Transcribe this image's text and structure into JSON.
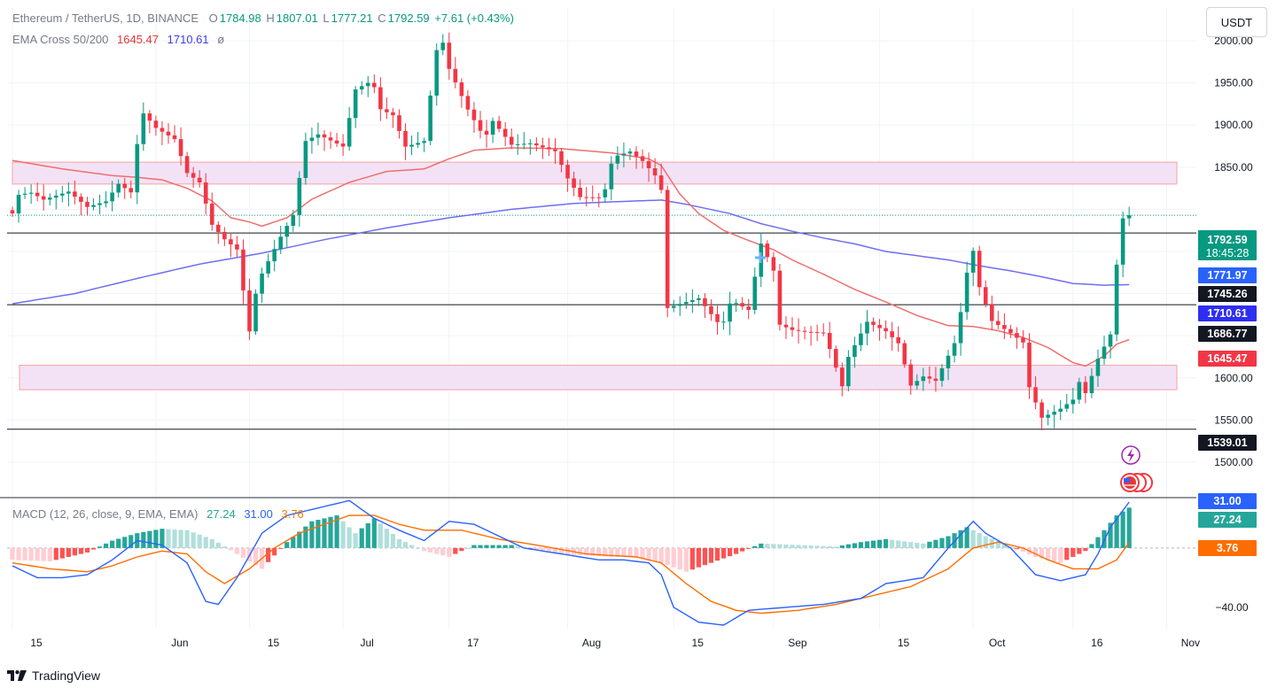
{
  "header": {
    "symbol": "Ethereum / TetherUS, 1D, BINANCE",
    "o_label": "O",
    "o_value": "1784.98",
    "h_label": "H",
    "h_value": "1807.01",
    "l_label": "L",
    "l_value": "1777.21",
    "c_label": "C",
    "c_value": "1792.59",
    "change": "+7.61 (+0.43%)",
    "ema_label": "EMA Cross 50/200",
    "ema50_value": "1645.47",
    "ema200_value": "1710.61",
    "ema_extra": "ø",
    "macd_label": "MACD (12, 26, close, 9, EMA, EMA)",
    "macd_hist_value": "27.24",
    "macd_line_value": "31.00",
    "macd_signal_value": "3.76"
  },
  "currency_button": "USDT",
  "footer_brand": "TradingView",
  "colors": {
    "up": "#089981",
    "down": "#f23645",
    "ema50": "#f06e6e",
    "ema200": "#6e6ef0",
    "zone_fill": "#f3e2f5",
    "zone_stroke": "#f4a3a3",
    "macd": "#2962ff",
    "signal": "#ff6d00",
    "hist_pos_strong": "#26a69a",
    "hist_pos_weak": "#b2dfdb",
    "hist_neg_strong": "#ff5252",
    "hist_neg_weak": "#ffcdd2"
  },
  "chart_data": {
    "type": "candlestick",
    "price_axis": {
      "ticks": [
        1500,
        1550,
        1600,
        1650,
        1700,
        1750,
        1800,
        1850,
        1900,
        1950,
        2000
      ],
      "tick_labels": [
        "1500.00",
        "1550.00",
        "1600.00",
        "1650.00",
        "1700.00",
        "1750.00",
        "1800.00",
        "1850.00",
        "1900.00",
        "1950.00",
        "2000.00"
      ],
      "range": [
        1460,
        2040
      ]
    },
    "macd_axis": {
      "ticks": [
        -40
      ],
      "tick_labels": [
        "−40.00"
      ],
      "range": [
        -52,
        31
      ]
    },
    "time_axis": {
      "labels": [
        "15",
        "Jun",
        "15",
        "Jul",
        "17",
        "Aug",
        "15",
        "Sep",
        "15",
        "Oct",
        "16",
        "Nov"
      ],
      "label_bar_index": [
        0,
        23,
        38,
        53,
        70,
        89,
        106,
        122,
        139,
        154,
        170,
        185
      ]
    },
    "horizontal_levels": [
      {
        "value": 1771.97,
        "label": "1771.97"
      },
      {
        "value": 1686.77,
        "label": "1686.77"
      },
      {
        "value": 1539.01,
        "label": "1539.01"
      }
    ],
    "zones": [
      {
        "from": 1830,
        "to": 1856
      },
      {
        "from": 1586,
        "to": 1615
      }
    ],
    "price_labels": [
      {
        "value": 1792.59,
        "label": "1792.59",
        "sub": "18:45:28",
        "color": "#089981"
      },
      {
        "value": 1771.97,
        "label": "1771.97",
        "color": "#2962ff"
      },
      {
        "value": 1745.26,
        "label": "1745.26",
        "color": "#131722"
      },
      {
        "value": 1710.61,
        "label": "1710.61",
        "color": "#2e2ef2"
      },
      {
        "value": 1686.77,
        "label": "1686.77",
        "color": "#131722"
      },
      {
        "value": 1645.47,
        "label": "1645.47",
        "color": "#f23645"
      },
      {
        "value": 1539.01,
        "label": "1539.01",
        "color": "#131722"
      }
    ],
    "macd_labels": [
      {
        "value": 31.0,
        "label": "31.00",
        "color": "#2962ff"
      },
      {
        "value": 27.24,
        "label": "27.24",
        "color": "#26a69a"
      },
      {
        "value": 3.76,
        "label": "3.76",
        "color": "#ff6d00"
      }
    ],
    "close_path": [
      [
        0,
        1805
      ],
      [
        3,
        1812
      ],
      [
        5,
        1806
      ],
      [
        9,
        1820
      ],
      [
        12,
        1805
      ],
      [
        15,
        1815
      ],
      [
        17,
        1838
      ],
      [
        19,
        1830
      ],
      [
        21,
        1905
      ],
      [
        23,
        1890
      ],
      [
        26,
        1880
      ],
      [
        28,
        1842
      ],
      [
        30,
        1833
      ],
      [
        32,
        1785
      ],
      [
        34,
        1770
      ],
      [
        36,
        1760
      ],
      [
        38,
        1665
      ],
      [
        40,
        1715
      ],
      [
        43,
        1762
      ],
      [
        45,
        1790
      ],
      [
        47,
        1880
      ],
      [
        49,
        1890
      ],
      [
        53,
        1880
      ],
      [
        55,
        1950
      ],
      [
        57,
        1960
      ],
      [
        59,
        1910
      ],
      [
        61,
        1905
      ],
      [
        63,
        1870
      ],
      [
        66,
        1880
      ],
      [
        68,
        1990
      ],
      [
        69,
        2000
      ],
      [
        70,
        1970
      ],
      [
        73,
        1925
      ],
      [
        75,
        1902
      ],
      [
        77,
        1895
      ],
      [
        80,
        1870
      ],
      [
        83,
        1875
      ],
      [
        87,
        1870
      ],
      [
        89,
        1840
      ],
      [
        91,
        1820
      ],
      [
        94,
        1823
      ],
      [
        97,
        1855
      ],
      [
        99,
        1862
      ],
      [
        101,
        1853
      ],
      [
        103,
        1838
      ],
      [
        104,
        1822
      ],
      [
        105,
        1683
      ],
      [
        107,
        1690
      ],
      [
        110,
        1700
      ],
      [
        113,
        1675
      ],
      [
        116,
        1680
      ],
      [
        118,
        1674
      ],
      [
        120,
        1755
      ],
      [
        122,
        1725
      ],
      [
        123,
        1662
      ],
      [
        125,
        1658
      ],
      [
        127,
        1658
      ],
      [
        130,
        1660
      ],
      [
        131,
        1642
      ],
      [
        133,
        1600
      ],
      [
        135,
        1630
      ],
      [
        137,
        1660
      ],
      [
        140,
        1652
      ],
      [
        142,
        1640
      ],
      [
        144,
        1592
      ],
      [
        146,
        1605
      ],
      [
        148,
        1602
      ],
      [
        151,
        1650
      ],
      [
        152,
        1688
      ],
      [
        154,
        1742
      ],
      [
        155,
        1700
      ],
      [
        157,
        1662
      ],
      [
        160,
        1651
      ],
      [
        162,
        1642
      ],
      [
        163,
        1590
      ],
      [
        165,
        1556
      ],
      [
        168,
        1570
      ],
      [
        170,
        1583
      ],
      [
        171,
        1605
      ],
      [
        172,
        1572
      ],
      [
        174,
        1615
      ],
      [
        176,
        1646
      ],
      [
        177,
        1730
      ],
      [
        178,
        1786
      ],
      [
        179,
        1793
      ]
    ],
    "ema50": [
      [
        0,
        1858
      ],
      [
        8,
        1848
      ],
      [
        16,
        1840
      ],
      [
        20,
        1838
      ],
      [
        24,
        1835
      ],
      [
        28,
        1825
      ],
      [
        32,
        1810
      ],
      [
        35,
        1790
      ],
      [
        38,
        1785
      ],
      [
        40,
        1780
      ],
      [
        44,
        1790
      ],
      [
        48,
        1812
      ],
      [
        54,
        1832
      ],
      [
        60,
        1845
      ],
      [
        66,
        1848
      ],
      [
        70,
        1860
      ],
      [
        74,
        1870
      ],
      [
        80,
        1873
      ],
      [
        88,
        1872
      ],
      [
        96,
        1867
      ],
      [
        102,
        1860
      ],
      [
        104,
        1852
      ],
      [
        107,
        1818
      ],
      [
        110,
        1795
      ],
      [
        114,
        1775
      ],
      [
        118,
        1763
      ],
      [
        122,
        1752
      ],
      [
        125,
        1740
      ],
      [
        130,
        1723
      ],
      [
        135,
        1705
      ],
      [
        140,
        1690
      ],
      [
        145,
        1674
      ],
      [
        150,
        1662
      ],
      [
        154,
        1661
      ],
      [
        158,
        1656
      ],
      [
        162,
        1648
      ],
      [
        166,
        1636
      ],
      [
        170,
        1618
      ],
      [
        172,
        1614
      ],
      [
        175,
        1626
      ],
      [
        177,
        1640
      ],
      [
        179,
        1645.47
      ]
    ],
    "ema200": [
      [
        0,
        1688
      ],
      [
        10,
        1700
      ],
      [
        20,
        1718
      ],
      [
        30,
        1735
      ],
      [
        40,
        1748
      ],
      [
        50,
        1764
      ],
      [
        60,
        1778
      ],
      [
        70,
        1790
      ],
      [
        80,
        1800
      ],
      [
        90,
        1807
      ],
      [
        100,
        1810
      ],
      [
        104,
        1811
      ],
      [
        108,
        1806
      ],
      [
        115,
        1795
      ],
      [
        120,
        1783
      ],
      [
        125,
        1774
      ],
      [
        130,
        1766
      ],
      [
        135,
        1759
      ],
      [
        140,
        1750
      ],
      [
        145,
        1745
      ],
      [
        150,
        1740
      ],
      [
        155,
        1733
      ],
      [
        160,
        1727
      ],
      [
        165,
        1720
      ],
      [
        170,
        1712
      ],
      [
        175,
        1710
      ],
      [
        179,
        1710.61
      ]
    ],
    "macd_hist_anchors": [
      [
        0,
        -8
      ],
      [
        6,
        -9
      ],
      [
        12,
        -3
      ],
      [
        16,
        5
      ],
      [
        20,
        10
      ],
      [
        24,
        13
      ],
      [
        28,
        12
      ],
      [
        32,
        6
      ],
      [
        36,
        -4
      ],
      [
        40,
        -14
      ],
      [
        44,
        4
      ],
      [
        48,
        18
      ],
      [
        52,
        22
      ],
      [
        55,
        10
      ],
      [
        58,
        20
      ],
      [
        62,
        6
      ],
      [
        66,
        -2
      ],
      [
        70,
        -6
      ],
      [
        74,
        2
      ],
      [
        80,
        2
      ],
      [
        88,
        -4
      ],
      [
        96,
        -6
      ],
      [
        100,
        -6
      ],
      [
        104,
        -10
      ],
      [
        108,
        -16
      ],
      [
        112,
        -10
      ],
      [
        116,
        -4
      ],
      [
        120,
        3
      ],
      [
        126,
        2
      ],
      [
        132,
        1
      ],
      [
        136,
        4
      ],
      [
        140,
        6
      ],
      [
        146,
        3
      ],
      [
        150,
        8
      ],
      [
        153,
        14
      ],
      [
        156,
        8
      ],
      [
        160,
        1
      ],
      [
        164,
        -6
      ],
      [
        168,
        -10
      ],
      [
        172,
        -2
      ],
      [
        175,
        12
      ],
      [
        177,
        22
      ],
      [
        179,
        27.24
      ]
    ],
    "macd_line": [
      [
        0,
        -12
      ],
      [
        4,
        -20
      ],
      [
        8,
        -20
      ],
      [
        12,
        -18
      ],
      [
        16,
        -8
      ],
      [
        20,
        5
      ],
      [
        24,
        2
      ],
      [
        28,
        -10
      ],
      [
        31,
        -36
      ],
      [
        33,
        -38
      ],
      [
        36,
        -20
      ],
      [
        40,
        10
      ],
      [
        44,
        22
      ],
      [
        50,
        28
      ],
      [
        54,
        32
      ],
      [
        58,
        20
      ],
      [
        62,
        12
      ],
      [
        66,
        5
      ],
      [
        70,
        18
      ],
      [
        74,
        16
      ],
      [
        78,
        8
      ],
      [
        82,
        0
      ],
      [
        88,
        -4
      ],
      [
        94,
        -8
      ],
      [
        98,
        -8
      ],
      [
        102,
        -10
      ],
      [
        104,
        -18
      ],
      [
        106,
        -40
      ],
      [
        110,
        -50
      ],
      [
        114,
        -52
      ],
      [
        118,
        -42
      ],
      [
        124,
        -40
      ],
      [
        130,
        -38
      ],
      [
        136,
        -34
      ],
      [
        140,
        -24
      ],
      [
        146,
        -20
      ],
      [
        150,
        0
      ],
      [
        154,
        18
      ],
      [
        156,
        10
      ],
      [
        160,
        0
      ],
      [
        164,
        -18
      ],
      [
        168,
        -22
      ],
      [
        172,
        -18
      ],
      [
        174,
        -4
      ],
      [
        176,
        14
      ],
      [
        179,
        31
      ]
    ],
    "signal_line": [
      [
        0,
        -10
      ],
      [
        6,
        -14
      ],
      [
        12,
        -16
      ],
      [
        16,
        -12
      ],
      [
        20,
        -6
      ],
      [
        24,
        -2
      ],
      [
        28,
        -4
      ],
      [
        31,
        -16
      ],
      [
        34,
        -24
      ],
      [
        38,
        -14
      ],
      [
        42,
        0
      ],
      [
        46,
        10
      ],
      [
        50,
        16
      ],
      [
        54,
        22
      ],
      [
        58,
        22
      ],
      [
        62,
        16
      ],
      [
        66,
        12
      ],
      [
        72,
        12
      ],
      [
        78,
        6
      ],
      [
        84,
        2
      ],
      [
        92,
        -4
      ],
      [
        100,
        -6
      ],
      [
        104,
        -10
      ],
      [
        108,
        -24
      ],
      [
        112,
        -36
      ],
      [
        116,
        -42
      ],
      [
        120,
        -44
      ],
      [
        126,
        -42
      ],
      [
        132,
        -38
      ],
      [
        138,
        -32
      ],
      [
        144,
        -26
      ],
      [
        150,
        -14
      ],
      [
        154,
        0
      ],
      [
        158,
        4
      ],
      [
        162,
        0
      ],
      [
        166,
        -8
      ],
      [
        170,
        -14
      ],
      [
        174,
        -14
      ],
      [
        177,
        -8
      ],
      [
        179,
        3.76
      ]
    ]
  }
}
